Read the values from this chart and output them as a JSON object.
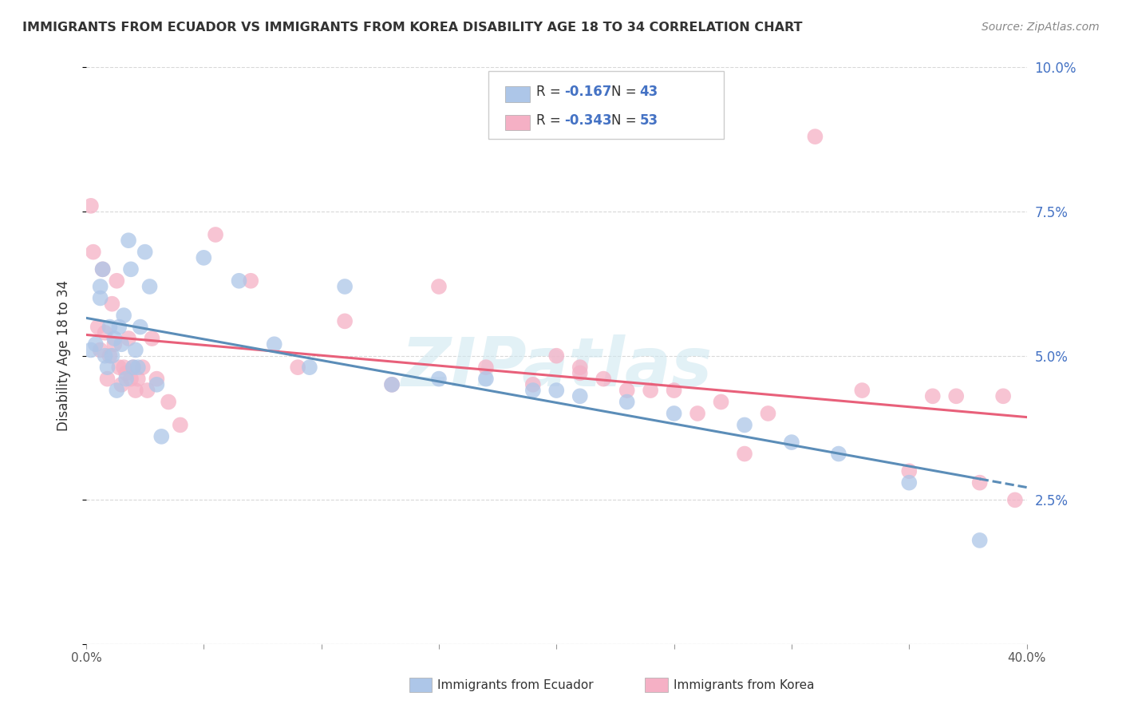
{
  "title": "IMMIGRANTS FROM ECUADOR VS IMMIGRANTS FROM KOREA DISABILITY AGE 18 TO 34 CORRELATION CHART",
  "source": "Source: ZipAtlas.com",
  "ylabel": "Disability Age 18 to 34",
  "xlim": [
    0.0,
    0.4
  ],
  "ylim": [
    0.0,
    0.1
  ],
  "ecuador_R": -0.167,
  "ecuador_N": 43,
  "korea_R": -0.343,
  "korea_N": 53,
  "ecuador_color": "#adc6e8",
  "korea_color": "#f5b0c5",
  "trendline_ecuador_color": "#5b8db8",
  "trendline_korea_color": "#e8607a",
  "background_color": "#ffffff",
  "grid_color": "#d8d8d8",
  "ecuador_scatter_x": [
    0.002,
    0.004,
    0.006,
    0.006,
    0.007,
    0.008,
    0.009,
    0.01,
    0.011,
    0.012,
    0.013,
    0.014,
    0.015,
    0.016,
    0.017,
    0.018,
    0.019,
    0.02,
    0.021,
    0.022,
    0.023,
    0.025,
    0.027,
    0.03,
    0.032,
    0.05,
    0.065,
    0.08,
    0.095,
    0.11,
    0.13,
    0.15,
    0.17,
    0.19,
    0.2,
    0.21,
    0.23,
    0.25,
    0.28,
    0.3,
    0.32,
    0.35,
    0.38
  ],
  "ecuador_scatter_y": [
    0.051,
    0.052,
    0.06,
    0.062,
    0.065,
    0.05,
    0.048,
    0.055,
    0.05,
    0.053,
    0.044,
    0.055,
    0.052,
    0.057,
    0.046,
    0.07,
    0.065,
    0.048,
    0.051,
    0.048,
    0.055,
    0.068,
    0.062,
    0.045,
    0.036,
    0.067,
    0.063,
    0.052,
    0.048,
    0.062,
    0.045,
    0.046,
    0.046,
    0.044,
    0.044,
    0.043,
    0.042,
    0.04,
    0.038,
    0.035,
    0.033,
    0.028,
    0.018
  ],
  "korea_scatter_x": [
    0.002,
    0.003,
    0.005,
    0.006,
    0.007,
    0.008,
    0.009,
    0.01,
    0.011,
    0.012,
    0.013,
    0.014,
    0.015,
    0.016,
    0.017,
    0.018,
    0.019,
    0.02,
    0.021,
    0.022,
    0.024,
    0.026,
    0.028,
    0.03,
    0.035,
    0.04,
    0.055,
    0.07,
    0.09,
    0.11,
    0.13,
    0.15,
    0.17,
    0.19,
    0.2,
    0.21,
    0.22,
    0.23,
    0.25,
    0.27,
    0.29,
    0.31,
    0.33,
    0.35,
    0.36,
    0.37,
    0.38,
    0.39,
    0.21,
    0.24,
    0.26,
    0.28,
    0.395
  ],
  "korea_scatter_y": [
    0.076,
    0.068,
    0.055,
    0.051,
    0.065,
    0.054,
    0.046,
    0.05,
    0.059,
    0.052,
    0.063,
    0.048,
    0.045,
    0.048,
    0.047,
    0.053,
    0.046,
    0.048,
    0.044,
    0.046,
    0.048,
    0.044,
    0.053,
    0.046,
    0.042,
    0.038,
    0.071,
    0.063,
    0.048,
    0.056,
    0.045,
    0.062,
    0.048,
    0.045,
    0.05,
    0.047,
    0.046,
    0.044,
    0.044,
    0.042,
    0.04,
    0.088,
    0.044,
    0.03,
    0.043,
    0.043,
    0.028,
    0.043,
    0.048,
    0.044,
    0.04,
    0.033,
    0.025
  ],
  "watermark": "ZIPatlas",
  "legend_label_ecuador": "Immigrants from Ecuador",
  "legend_label_korea": "Immigrants from Korea"
}
